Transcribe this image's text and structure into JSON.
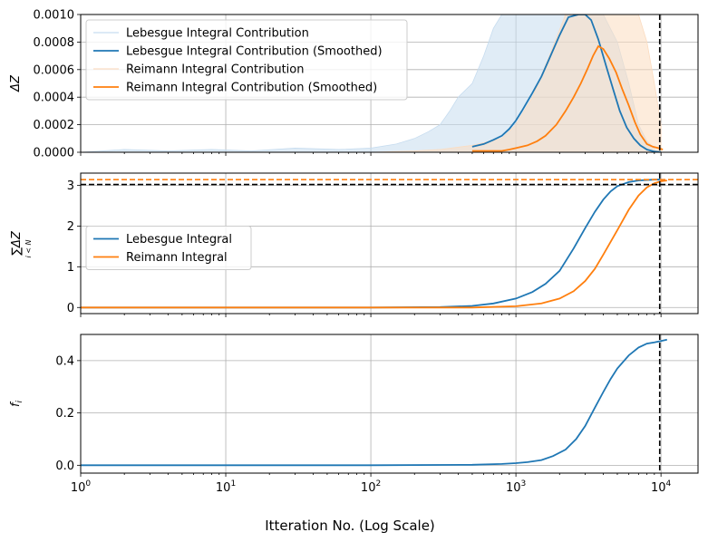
{
  "figure": {
    "xlabel": "Itteration No. (Log Scale)"
  },
  "colors": {
    "lebesgue": "#1f77b4",
    "reimann": "#ff7f0e",
    "lebesgue_raw": "#c6dcef",
    "reimann_raw": "#fbdcc0",
    "grid": "#b0b0b0",
    "reference": "#000000"
  },
  "chart_data": [
    {
      "type": "line",
      "ylabel": "ΔZ",
      "xscale": "log",
      "xlim": [
        1,
        18000
      ],
      "ylim": [
        0,
        0.001
      ],
      "yticks": [
        "0.0000",
        "0.0002",
        "0.0004",
        "0.0006",
        "0.0008",
        "0.0010"
      ],
      "ytick_values": [
        0,
        0.0002,
        0.0004,
        0.0006,
        0.0008,
        0.001
      ],
      "grid": true,
      "legend": "top-left",
      "vline": 9800,
      "series": [
        {
          "name": "Lebesgue Integral Contribution",
          "style": "raw",
          "color_key": "lebesgue_raw",
          "x": [
            1,
            2,
            4,
            8,
            15,
            30,
            60,
            100,
            150,
            200,
            250,
            300,
            350,
            400,
            500,
            600,
            700,
            800,
            1000,
            1300,
            1700,
            2200,
            2700,
            3300,
            4000,
            5000,
            6000,
            7000,
            8000,
            9000
          ],
          "y": [
            0,
            2e-05,
            1e-05,
            2e-05,
            1e-05,
            3e-05,
            2e-05,
            3e-05,
            6e-05,
            0.0001,
            0.00015,
            0.0002,
            0.0003,
            0.0004,
            0.0005,
            0.0007,
            0.0009,
            0.001,
            0.001,
            0.001,
            0.001,
            0.001,
            0.001,
            0.001,
            0.001,
            0.0008,
            0.0005,
            0.0002,
            8e-05,
            3e-05
          ]
        },
        {
          "name": "Lebesgue Integral Contribution (Smoothed)",
          "style": "solid",
          "color_key": "lebesgue",
          "x": [
            500,
            600,
            700,
            800,
            900,
            1000,
            1100,
            1300,
            1500,
            1700,
            2000,
            2300,
            2700,
            3000,
            3300,
            3700,
            4200,
            4700,
            5200,
            5800,
            6500,
            7200,
            8000,
            9000,
            10000
          ],
          "y": [
            4e-05,
            6e-05,
            9e-05,
            0.00012,
            0.00017,
            0.00023,
            0.0003,
            0.00043,
            0.00055,
            0.00068,
            0.00085,
            0.00098,
            0.001,
            0.001,
            0.00096,
            0.00082,
            0.00062,
            0.00045,
            0.0003,
            0.00018,
            0.0001,
            5e-05,
            2e-05,
            5e-06,
            1e-06
          ]
        },
        {
          "name": "Reimann Integral Contribution",
          "style": "raw",
          "color_key": "reimann_raw",
          "x": [
            100,
            200,
            300,
            500,
            800,
            1000,
            1300,
            1700,
            2200,
            2700,
            3300,
            4000,
            5000,
            6000,
            7000,
            8000,
            9000,
            10000
          ],
          "y": [
            0,
            1e-05,
            2e-05,
            5e-05,
            0.0001,
            0.0002,
            0.0004,
            0.0007,
            0.001,
            0.001,
            0.001,
            0.001,
            0.001,
            0.001,
            0.001,
            0.0008,
            0.0005,
            0.0002
          ]
        },
        {
          "name": "Reimann Integral Contribution (Smoothed)",
          "style": "solid",
          "color_key": "reimann",
          "x": [
            500,
            600,
            700,
            800,
            900,
            1000,
            1200,
            1400,
            1600,
            1900,
            2200,
            2500,
            2800,
            3100,
            3400,
            3700,
            4000,
            4400,
            4900,
            5400,
            6000,
            6600,
            7200,
            8000,
            8800,
            9600,
            10300
          ],
          "y": [
            1e-05,
            1e-05,
            1e-05,
            1e-05,
            2e-05,
            3e-05,
            5e-05,
            8e-05,
            0.00012,
            0.0002,
            0.0003,
            0.0004,
            0.0005,
            0.0006,
            0.0007,
            0.00077,
            0.00075,
            0.00068,
            0.00058,
            0.00046,
            0.00034,
            0.00022,
            0.00013,
            6e-05,
            4e-05,
            3e-05,
            2e-05
          ]
        }
      ]
    },
    {
      "type": "line",
      "ylabel_main": "∑ΔZ",
      "ylabel_sub": "i < N",
      "xscale": "log",
      "xlim": [
        1,
        18000
      ],
      "ylim": [
        -0.15,
        3.3
      ],
      "yticks": [
        "0",
        "1",
        "2",
        "3"
      ],
      "ytick_values": [
        0,
        1,
        2,
        3
      ],
      "grid": true,
      "legend": "center-left",
      "vline": 9800,
      "hlines": [
        {
          "y": 3.02,
          "color_key": "reference"
        },
        {
          "y": 3.14,
          "color_key": "reimann"
        }
      ],
      "series": [
        {
          "name": "Lebesgue Integral",
          "style": "solid",
          "color_key": "lebesgue",
          "x": [
            1,
            10,
            100,
            300,
            500,
            700,
            1000,
            1300,
            1600,
            2000,
            2500,
            3000,
            3500,
            4000,
            4500,
            5000,
            6000,
            7000,
            8000,
            9000,
            10000
          ],
          "y": [
            0,
            0,
            0,
            0.01,
            0.04,
            0.1,
            0.22,
            0.38,
            0.58,
            0.9,
            1.45,
            1.95,
            2.35,
            2.65,
            2.85,
            2.98,
            3.08,
            3.12,
            3.13,
            3.14,
            3.14
          ]
        },
        {
          "name": "Reimann Integral",
          "style": "solid",
          "color_key": "reimann",
          "x": [
            1,
            10,
            100,
            500,
            1000,
            1500,
            2000,
            2500,
            3000,
            3500,
            4000,
            5000,
            6000,
            7000,
            8000,
            9000,
            10000,
            11000
          ],
          "y": [
            0,
            0,
            0,
            0,
            0.03,
            0.1,
            0.22,
            0.4,
            0.65,
            0.95,
            1.3,
            1.9,
            2.4,
            2.75,
            2.95,
            3.05,
            3.1,
            3.12
          ]
        }
      ]
    },
    {
      "type": "line",
      "ylabel": "f_i",
      "xscale": "log",
      "xlim": [
        1,
        18000
      ],
      "xticks": [
        1,
        10,
        100,
        1000,
        10000
      ],
      "xtick_exponents": [
        "0",
        "1",
        "2",
        "3",
        "4"
      ],
      "ylim": [
        -0.03,
        0.5
      ],
      "yticks": [
        "0.0",
        "0.2",
        "0.4"
      ],
      "ytick_values": [
        0,
        0.2,
        0.4
      ],
      "grid": true,
      "vline": 9800,
      "series": [
        {
          "name": "",
          "style": "solid",
          "color_key": "lebesgue",
          "x": [
            1,
            10,
            100,
            500,
            800,
            1000,
            1200,
            1500,
            1800,
            2200,
            2600,
            3000,
            3500,
            4000,
            4500,
            5000,
            6000,
            7000,
            8000,
            9000,
            10000,
            11000
          ],
          "y": [
            0,
            0,
            0,
            0.002,
            0.005,
            0.008,
            0.012,
            0.02,
            0.035,
            0.06,
            0.1,
            0.15,
            0.22,
            0.28,
            0.33,
            0.37,
            0.42,
            0.45,
            0.465,
            0.47,
            0.475,
            0.48
          ]
        }
      ]
    }
  ]
}
